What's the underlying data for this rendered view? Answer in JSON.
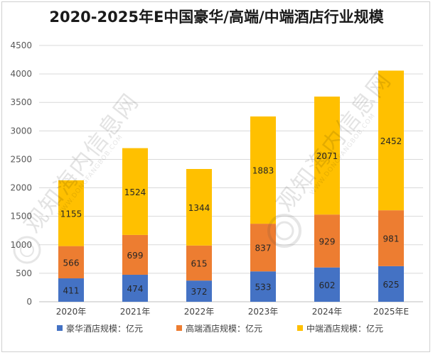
{
  "chart_data": {
    "type": "bar",
    "stacked": true,
    "title": "2020-2025年E中国豪华/高端/中端酒店行业规模",
    "categories": [
      "2020年",
      "2021年",
      "2022年",
      "2023年",
      "2024年",
      "2025年E"
    ],
    "series": [
      {
        "name": "豪华酒店规模：亿元",
        "color": "#4472c4",
        "values": [
          411,
          474,
          372,
          533,
          602,
          625
        ]
      },
      {
        "name": "高端酒店规模：亿元",
        "color": "#ed7d31",
        "values": [
          566,
          699,
          615,
          837,
          929,
          981
        ]
      },
      {
        "name": "中端酒店规模：亿元",
        "color": "#ffc000",
        "values": [
          1155,
          1524,
          1344,
          1883,
          2071,
          2452
        ]
      }
    ],
    "ylim": [
      0,
      4500
    ],
    "yticks": [
      0,
      500,
      1000,
      1500,
      2000,
      2500,
      3000,
      3500,
      4000,
      4500
    ],
    "grid": true,
    "legend_position": "bottom"
  },
  "watermark": {
    "logo": "观知海内信息网",
    "url": "WWW.DONGFANGBOB.COM"
  }
}
